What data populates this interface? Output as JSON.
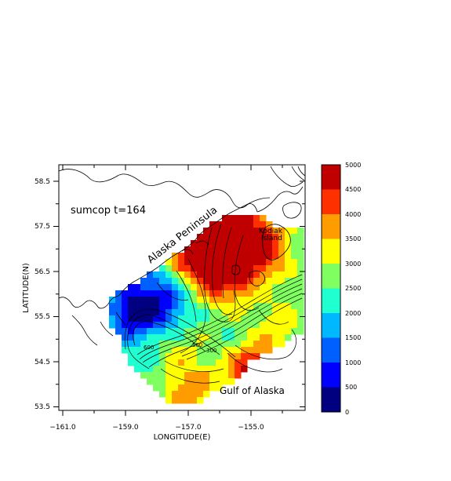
{
  "plot": {
    "title_text": "sumcop t=164",
    "xlabel": "LONGITUDE(E)",
    "ylabel": "LATITUDE(N)",
    "x_ticks": [
      "−161.0",
      "−159.0",
      "−157.0",
      "−155.0"
    ],
    "y_ticks": [
      "58.5",
      "57.5",
      "56.5",
      "55.5",
      "54.5",
      "53.5"
    ]
  },
  "annotations": {
    "peninsula": "Alaska Peninsula",
    "kodiak_line1": "Kodiak",
    "kodiak_line2": "Island",
    "gulf": "Gulf of Alaska",
    "contour_labels": [
      "600",
      "500",
      "300"
    ]
  },
  "colorbar": {
    "labels": [
      "5000",
      "4500",
      "4000",
      "3500",
      "3000",
      "2500",
      "2000",
      "1500",
      "1000",
      "500",
      "0"
    ],
    "colors": [
      "#c00000",
      "#ff3000",
      "#ff9c00",
      "#ffff00",
      "#80ff60",
      "#20ffd0",
      "#00b8ff",
      "#0060ff",
      "#0000ff",
      "#000080"
    ]
  }
}
